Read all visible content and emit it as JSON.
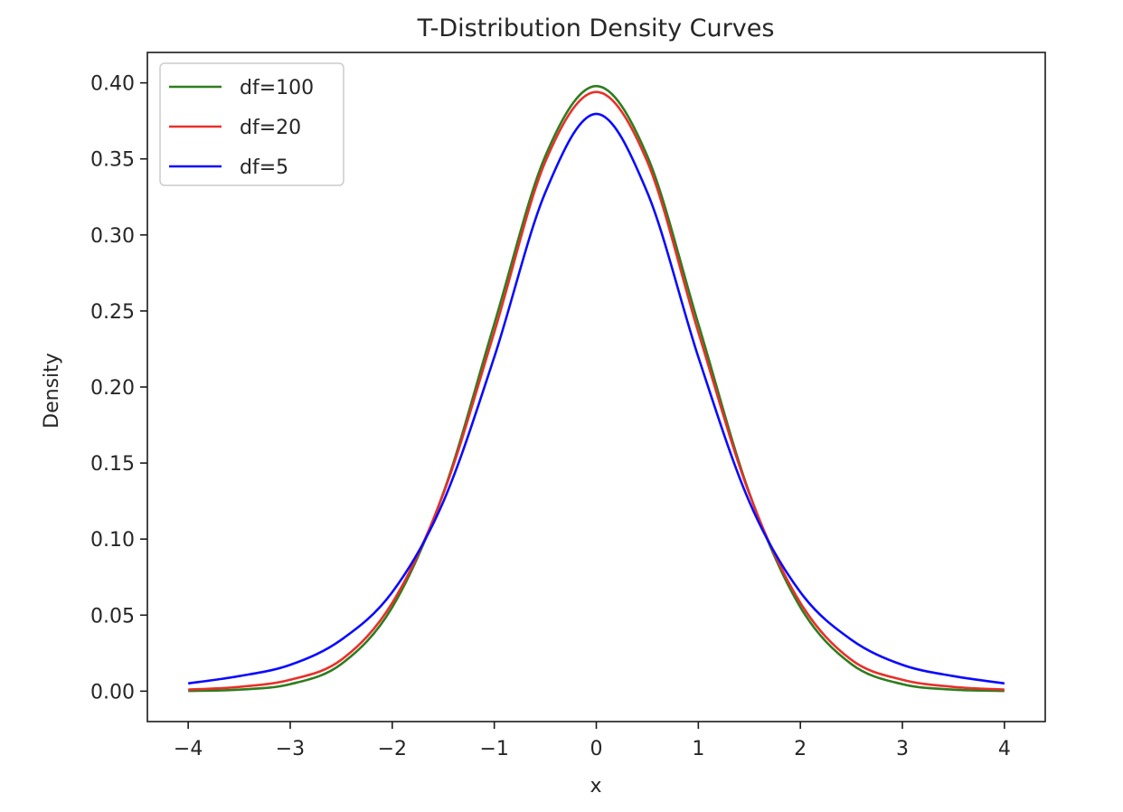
{
  "chart_data": {
    "type": "line",
    "title": "T-Distribution Density Curves",
    "xlabel": "x",
    "ylabel": "Density",
    "xlim": [
      -4.4,
      4.4
    ],
    "ylim": [
      -0.02,
      0.42
    ],
    "x_ticks": [
      -4,
      -3,
      -2,
      -1,
      0,
      1,
      2,
      3,
      4
    ],
    "x_tick_labels": [
      "−4",
      "−3",
      "−2",
      "−1",
      "0",
      "1",
      "2",
      "3",
      "4"
    ],
    "y_ticks": [
      0.0,
      0.05,
      0.1,
      0.15,
      0.2,
      0.25,
      0.3,
      0.35,
      0.4
    ],
    "y_tick_labels": [
      "0.00",
      "0.05",
      "0.10",
      "0.15",
      "0.20",
      "0.25",
      "0.30",
      "0.35",
      "0.40"
    ],
    "grid": false,
    "legend_position": "top-left",
    "x": [
      -4.0,
      -3.5,
      -3.0,
      -2.5,
      -2.0,
      -1.5,
      -1.0,
      -0.5,
      0.0,
      0.5,
      1.0,
      1.5,
      2.0,
      2.5,
      3.0,
      3.5,
      4.0
    ],
    "series": [
      {
        "name": "df=100",
        "color": "#2e7d1e",
        "values": [
          0.0002,
          0.001,
          0.0046,
          0.0178,
          0.0552,
          0.1303,
          0.2415,
          0.3518,
          0.3979,
          0.3518,
          0.2415,
          0.1303,
          0.0552,
          0.0178,
          0.0046,
          0.001,
          0.0002
        ]
      },
      {
        "name": "df=20",
        "color": "#e8302a",
        "values": [
          0.001,
          0.0028,
          0.0075,
          0.0206,
          0.0581,
          0.1297,
          0.236,
          0.3481,
          0.394,
          0.3481,
          0.236,
          0.1297,
          0.0581,
          0.0206,
          0.0075,
          0.0028,
          0.001
        ]
      },
      {
        "name": "df=5",
        "color": "#0a0aff",
        "values": [
          0.0051,
          0.0099,
          0.0173,
          0.0338,
          0.0651,
          0.1245,
          0.2197,
          0.3279,
          0.3796,
          0.3279,
          0.2197,
          0.1245,
          0.0651,
          0.0338,
          0.0173,
          0.0099,
          0.0051
        ]
      }
    ]
  }
}
